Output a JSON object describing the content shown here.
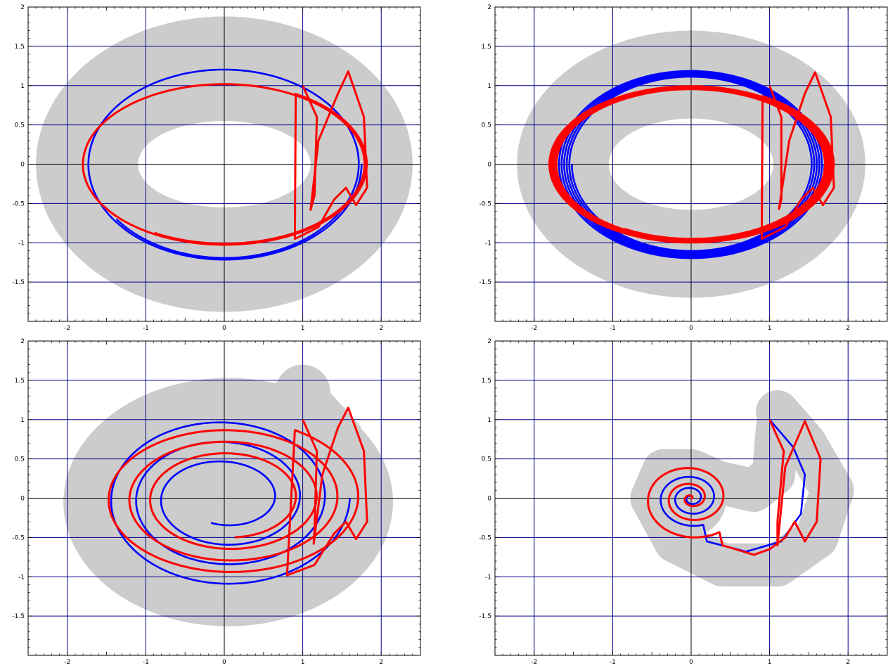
{
  "colors": {
    "band": "#cccccc",
    "blue": "#0000ff",
    "red": "#ff0000",
    "grid": "#00008b",
    "axis": "#000000"
  },
  "chart_data": [
    {
      "type": "line",
      "panel": "top-left",
      "xlim": [
        -2.5,
        2.5
      ],
      "ylim": [
        -2,
        2
      ],
      "xticks": [
        -2,
        -1,
        0,
        1,
        2
      ],
      "xtick_labels": [
        "-2",
        "-1",
        "0",
        "1",
        "2"
      ],
      "yticks": [
        -1.5,
        -1,
        -0.5,
        0,
        0.5,
        1,
        1.5,
        2
      ],
      "ytick_labels": [
        "-1.5",
        "-1",
        "-0.5",
        "0",
        "0.5",
        "1",
        "1.5",
        "2"
      ],
      "grid": true,
      "band": {
        "kind": "annulus",
        "cx": 0,
        "cy": 0,
        "outer_rx": 2.4,
        "outer_ry": 1.88,
        "inner_rx": 1.1,
        "inner_ry": 0.55
      },
      "blue": {
        "kind": "spiral",
        "cx": 0,
        "cy": 0,
        "rx0": 1.75,
        "ry0": 1.22,
        "rx1": 1.7,
        "ry1": 1.19,
        "turns": 1.4,
        "start_angle": 0
      },
      "red": {
        "kind": "loopspiral",
        "cx": 0,
        "cy": 0,
        "rx0": 1.82,
        "ry0": 1.03,
        "rx1": 1.78,
        "ry1": 1.01,
        "turns": 1.5,
        "loop": [
          [
            1.0,
            1.0
          ],
          [
            1.18,
            0.6
          ],
          [
            1.15,
            -0.4
          ],
          [
            1.1,
            -0.58
          ],
          [
            1.2,
            0.3
          ],
          [
            1.45,
            0.9
          ],
          [
            1.58,
            1.18
          ],
          [
            1.78,
            0.6
          ],
          [
            1.82,
            -0.3
          ],
          [
            1.68,
            -0.52
          ],
          [
            1.55,
            -0.3
          ],
          [
            1.4,
            -0.45
          ],
          [
            1.2,
            -0.8
          ],
          [
            0.9,
            -0.95
          ]
        ]
      }
    },
    {
      "type": "line",
      "panel": "top-right",
      "xlim": [
        -2.5,
        2.5
      ],
      "ylim": [
        -2,
        2
      ],
      "xticks": [
        -2,
        -1,
        0,
        1,
        2
      ],
      "xtick_labels": [
        "-2",
        "-1",
        "0",
        "1",
        "2"
      ],
      "yticks": [
        -1.5,
        -1,
        -0.5,
        0,
        0.5,
        1,
        1.5,
        2
      ],
      "ytick_labels": [
        "-1.5",
        "-1",
        "-0.5",
        "0",
        "0.5",
        "1",
        "1.5",
        "2"
      ],
      "grid": true,
      "band": {
        "kind": "annulus",
        "cx": 0,
        "cy": 0,
        "outer_rx": 2.22,
        "outer_ry": 1.7,
        "inner_rx": 1.05,
        "inner_ry": 0.58
      },
      "blue": {
        "kind": "spiral",
        "cx": 0,
        "cy": 0,
        "rx0": 1.7,
        "ry0": 1.2,
        "rx1": 1.52,
        "ry1": 1.1,
        "turns": 5.5,
        "start_angle": 0
      },
      "red": {
        "kind": "loopspiral",
        "cx": 0,
        "cy": 0,
        "rx0": 1.82,
        "ry0": 1.0,
        "rx1": 1.7,
        "ry1": 0.95,
        "turns": 5.5,
        "loop": [
          [
            1.0,
            1.0
          ],
          [
            1.15,
            0.6
          ],
          [
            1.15,
            -0.45
          ],
          [
            1.12,
            -0.57
          ],
          [
            1.25,
            0.3
          ],
          [
            1.45,
            0.9
          ],
          [
            1.58,
            1.17
          ],
          [
            1.78,
            0.6
          ],
          [
            1.82,
            -0.3
          ],
          [
            1.68,
            -0.52
          ],
          [
            1.55,
            -0.3
          ],
          [
            1.4,
            -0.45
          ],
          [
            1.2,
            -0.8
          ],
          [
            0.9,
            -0.95
          ]
        ]
      }
    },
    {
      "type": "line",
      "panel": "bottom-left",
      "xlim": [
        -2.5,
        2.5
      ],
      "ylim": [
        -2,
        2
      ],
      "xticks": [
        -2,
        -1,
        0,
        1,
        2
      ],
      "xtick_labels": [
        "-2",
        "-1",
        "0",
        "1",
        "2"
      ],
      "yticks": [
        -1.5,
        -1,
        -0.5,
        0,
        0.5,
        1,
        1.5,
        2
      ],
      "ytick_labels": [
        "-1.5",
        "-1",
        "-0.5",
        "0",
        "0.5",
        "1",
        "1.5",
        "2"
      ],
      "grid": true,
      "band": {
        "kind": "disk",
        "cx": 0.05,
        "cy": -0.05,
        "rx": 2.1,
        "ry": 1.58,
        "bump": [
          1.0,
          1.35,
          0.35
        ]
      },
      "blue": {
        "kind": "spiral",
        "cx": 0.0,
        "cy": 0.0,
        "rx0": 1.6,
        "ry0": 1.15,
        "rx1": 0.55,
        "ry1": 0.33,
        "turns": 3.3,
        "start_angle": 0
      },
      "red": {
        "kind": "loopspiral",
        "cx": 0.05,
        "cy": 0.0,
        "rx0": 1.7,
        "ry0": 1.0,
        "rx1": 0.8,
        "ry1": 0.5,
        "turns": 3.4,
        "loop": [
          [
            1.0,
            1.0
          ],
          [
            1.18,
            0.6
          ],
          [
            1.15,
            -0.4
          ],
          [
            1.14,
            -0.58
          ],
          [
            1.25,
            0.3
          ],
          [
            1.45,
            0.9
          ],
          [
            1.58,
            1.15
          ],
          [
            1.78,
            0.6
          ],
          [
            1.82,
            -0.3
          ],
          [
            1.68,
            -0.52
          ],
          [
            1.55,
            -0.3
          ],
          [
            1.4,
            -0.45
          ],
          [
            1.15,
            -0.85
          ],
          [
            0.8,
            -0.98
          ]
        ]
      }
    },
    {
      "type": "line",
      "panel": "bottom-right",
      "xlim": [
        -2.5,
        2.5
      ],
      "ylim": [
        -2,
        2
      ],
      "xticks": [
        -2,
        -1,
        0,
        1,
        2
      ],
      "xtick_labels": [
        "-2",
        "-1",
        "0",
        "1",
        "2"
      ],
      "yticks": [
        -1.5,
        -1,
        -0.5,
        0,
        0.5,
        1,
        1.5,
        2
      ],
      "ytick_labels": [
        "-1.5",
        "-1",
        "-0.5",
        "0",
        "0.5",
        "1",
        "1.5",
        "2"
      ],
      "grid": true,
      "band": {
        "kind": "hook",
        "points": [
          [
            1.1,
            1.1
          ],
          [
            1.45,
            0.7
          ],
          [
            1.8,
            0.1
          ],
          [
            1.6,
            -0.5
          ],
          [
            1.1,
            -0.85
          ],
          [
            0.4,
            -0.85
          ],
          [
            -0.2,
            -0.55
          ],
          [
            -0.5,
            0.0
          ],
          [
            -0.35,
            0.35
          ],
          [
            0.0,
            0.35
          ],
          [
            0.35,
            0.2
          ],
          [
            0.8,
            0.1
          ],
          [
            1.05,
            0.3
          ],
          [
            1.1,
            0.9
          ]
        ],
        "width": 0.55
      },
      "blue": {
        "kind": "tailspiral",
        "cx": 0.0,
        "cy": 0.0,
        "r0": 0.45,
        "turns": 3.0,
        "tail": [
          [
            1.0,
            1.0
          ],
          [
            1.3,
            0.65
          ],
          [
            1.45,
            0.3
          ],
          [
            1.4,
            -0.2
          ],
          [
            1.15,
            -0.55
          ],
          [
            0.7,
            -0.68
          ],
          [
            0.2,
            -0.55
          ]
        ]
      },
      "red": {
        "kind": "tailspiral",
        "cx": 0.0,
        "cy": 0.0,
        "r0": 0.65,
        "turns": 3.0,
        "tail": [
          [
            1.0,
            1.0
          ],
          [
            1.18,
            0.6
          ],
          [
            1.1,
            -0.3
          ],
          [
            1.1,
            -0.6
          ],
          [
            1.2,
            0.4
          ],
          [
            1.45,
            0.98
          ],
          [
            1.65,
            0.5
          ],
          [
            1.6,
            -0.3
          ],
          [
            1.45,
            -0.55
          ],
          [
            1.32,
            -0.3
          ],
          [
            1.2,
            -0.5
          ],
          [
            1.0,
            -0.65
          ],
          [
            0.8,
            -0.72
          ],
          [
            0.4,
            -0.6
          ]
        ]
      }
    }
  ]
}
